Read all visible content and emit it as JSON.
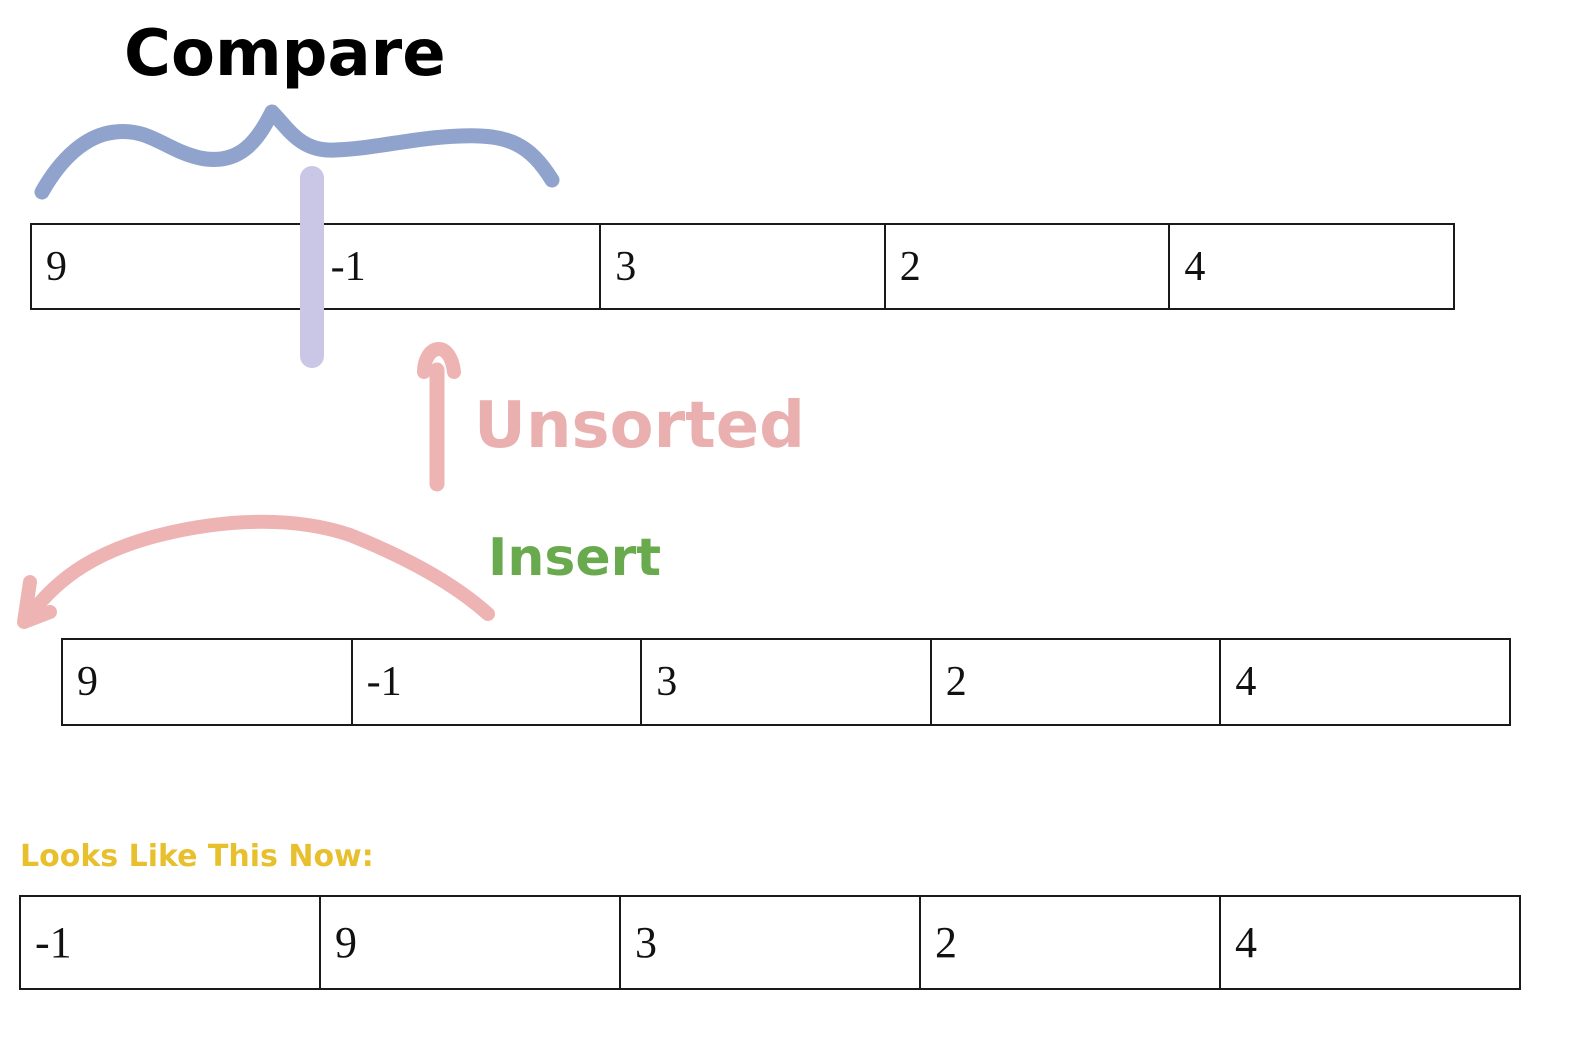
{
  "labels": {
    "compare": "Compare",
    "unsorted": "Unsorted",
    "insert": "Insert",
    "now": "Looks Like This Now:"
  },
  "arrays": {
    "before": [
      "9",
      "-1",
      "3",
      "2",
      "4"
    ],
    "insert_step": [
      "9",
      "-1",
      "3",
      "2",
      "4"
    ],
    "after": [
      "-1",
      "9",
      "3",
      "2",
      "4"
    ]
  },
  "colors": {
    "compare_brace": "#8fa3cc",
    "partition_marker": "#c9c6e6",
    "unsorted_arrow": "#eeb4b4",
    "insert_arrow": "#eeb4b4",
    "unsorted_text": "#eab0b0",
    "insert_text": "#6aaa4e",
    "now_text": "#e8bf2c"
  }
}
